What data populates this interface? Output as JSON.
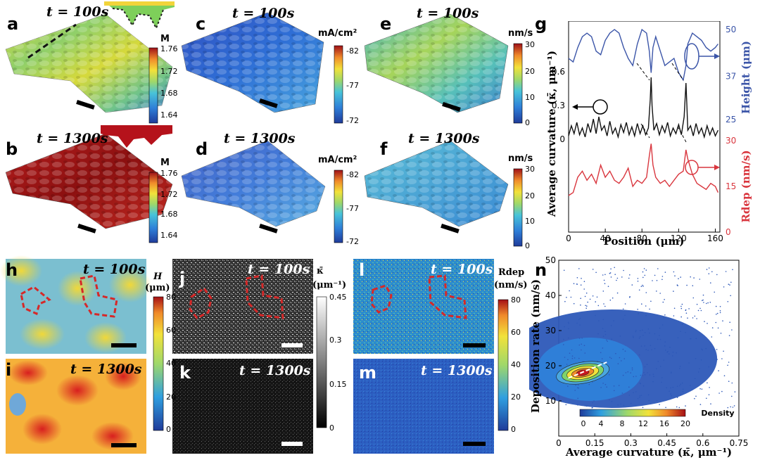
{
  "panels": {
    "a": {
      "label": "a",
      "time": "t = 100s"
    },
    "b": {
      "label": "b",
      "time": "t = 1300s"
    },
    "c": {
      "label": "c",
      "time": "t = 100s"
    },
    "d": {
      "label": "d",
      "time": "t = 1300s"
    },
    "e": {
      "label": "e",
      "time": "t = 100s"
    },
    "f": {
      "label": "f",
      "time": "t = 1300s"
    },
    "g": {
      "label": "g"
    },
    "h": {
      "label": "h",
      "time": "t = 100s"
    },
    "i": {
      "label": "i",
      "time": "t = 1300s"
    },
    "j": {
      "label": "j",
      "time": "t = 100s"
    },
    "k": {
      "label": "k",
      "time": "t = 1300s"
    },
    "l": {
      "label": "l",
      "time": "t = 100s"
    },
    "m": {
      "label": "m",
      "time": "t = 1300s"
    },
    "n": {
      "label": "n"
    }
  },
  "colorbars": {
    "M": {
      "unit": "M",
      "ticks": [
        "1.76",
        "1.72",
        "1.68",
        "1.64"
      ]
    },
    "current": {
      "unit": "mA/cm²",
      "ticks": [
        "-82",
        "-77",
        "-72"
      ]
    },
    "rate": {
      "unit": "nm/s",
      "ticks": [
        "30",
        "20",
        "10",
        "0"
      ]
    },
    "H": {
      "unit_a": "H",
      "unit_b": "(μm)",
      "ticks": [
        "80",
        "60",
        "40",
        "20",
        "0"
      ]
    },
    "kappa": {
      "unit_a": "κ̄",
      "unit_b": "(μm⁻¹)",
      "ticks": [
        "0.45",
        "0.3",
        "0.15",
        "0"
      ]
    },
    "Rdep": {
      "unit_a": "Rdep",
      "unit_b": "(nm/s)",
      "ticks": [
        "80",
        "60",
        "40",
        "20",
        "0"
      ]
    }
  },
  "g_axes": {
    "xlabel": "Position (μm)",
    "xticks": [
      "0",
      "40",
      "80",
      "120",
      "160"
    ],
    "ylabel_left": "Average curvature (κ̄, μm⁻¹)",
    "yticks_left": [
      "0.6",
      "0.3",
      "0"
    ],
    "ylabel_right_top": "Height (μm)",
    "yticks_right_top": [
      "50",
      "37",
      "25"
    ],
    "ylabel_right_bottom": "Rdep (nm/s)",
    "yticks_right_bottom": [
      "30",
      "15",
      "0"
    ]
  },
  "n_axes": {
    "xlabel": "Average curvature (κ̄, μm⁻¹)",
    "xticks": [
      "0",
      "0.15",
      "0.3",
      "0.45",
      "0.6",
      "0.75"
    ],
    "ylabel": "Deposition rate (nm/s)",
    "yticks": [
      "50",
      "40",
      "30",
      "20",
      "10"
    ],
    "density_label": "Density",
    "density_ticks": [
      "0",
      "4",
      "8",
      "12",
      "16",
      "20"
    ]
  },
  "colors": {
    "height_line": "#3b55a8",
    "curvature_line": "#111111",
    "rdep_line": "#d9363e",
    "outline": "#d62828"
  },
  "chart_data": [
    {
      "type": "line",
      "panel": "g",
      "x_range": [
        0,
        165
      ],
      "series": [
        {
          "x": [
            0,
            5,
            10,
            15,
            20,
            25,
            30,
            35,
            40,
            45,
            50,
            55,
            60,
            65,
            70,
            75,
            80,
            85,
            88,
            90,
            92,
            95,
            100,
            105,
            110,
            115,
            120,
            125,
            128,
            130,
            135,
            140,
            145,
            150,
            155,
            160,
            163
          ],
          "values": [
            42,
            41,
            45,
            48,
            49,
            48,
            44,
            43,
            47,
            49,
            50,
            49,
            45,
            42,
            40,
            46,
            50,
            49,
            44,
            38,
            45,
            48,
            44,
            40,
            41,
            42,
            38,
            36,
            40,
            46,
            49,
            48,
            47,
            45,
            44,
            45,
            46
          ],
          "axis": "Height"
        },
        {
          "x": [
            0,
            3,
            6,
            9,
            12,
            15,
            18,
            21,
            24,
            27,
            30,
            33,
            36,
            39,
            42,
            45,
            48,
            51,
            54,
            57,
            60,
            63,
            66,
            69,
            72,
            75,
            78,
            81,
            84,
            87,
            89,
            90,
            91,
            93,
            96,
            99,
            102,
            105,
            108,
            111,
            114,
            117,
            120,
            123,
            126,
            128,
            129,
            130,
            133,
            136,
            139,
            142,
            145,
            148,
            151,
            154,
            157,
            160,
            163
          ],
          "values": [
            0.03,
            0.12,
            0.05,
            0.15,
            0.04,
            0.1,
            0.02,
            0.14,
            0.06,
            0.18,
            0.05,
            0.2,
            0.08,
            0.12,
            0.03,
            0.16,
            0.05,
            0.1,
            0.02,
            0.13,
            0.06,
            0.15,
            0.04,
            0.11,
            0.03,
            0.14,
            0.05,
            0.12,
            0.04,
            0.1,
            0.35,
            0.55,
            0.3,
            0.08,
            0.14,
            0.04,
            0.12,
            0.06,
            0.15,
            0.03,
            0.1,
            0.05,
            0.13,
            0.04,
            0.2,
            0.5,
            0.3,
            0.08,
            0.12,
            0.03,
            0.14,
            0.05,
            0.1,
            0.02,
            0.12,
            0.04,
            0.1,
            0.03,
            0.08
          ],
          "axis": "Average curvature"
        },
        {
          "x": [
            0,
            5,
            10,
            15,
            20,
            25,
            30,
            35,
            40,
            45,
            50,
            55,
            60,
            65,
            70,
            75,
            80,
            85,
            88,
            90,
            92,
            95,
            100,
            105,
            110,
            115,
            120,
            125,
            128,
            130,
            135,
            140,
            145,
            150,
            155,
            160,
            163
          ],
          "values": [
            12,
            13,
            18,
            20,
            17,
            19,
            16,
            22,
            18,
            20,
            17,
            16,
            18,
            21,
            15,
            17,
            16,
            18,
            25,
            29,
            22,
            18,
            16,
            17,
            15,
            17,
            19,
            20,
            27,
            24,
            19,
            16,
            15,
            14,
            16,
            15,
            13
          ],
          "axis": "Rdep"
        }
      ]
    },
    {
      "type": "scatter",
      "panel": "n",
      "xlim": [
        0,
        0.75
      ],
      "ylim": [
        0,
        50
      ],
      "density_range": [
        0,
        20
      ],
      "peak": {
        "x": 0.1,
        "y": 18
      },
      "trend": {
        "x": [
          0.04,
          0.2
        ],
        "y": [
          16.5,
          21
        ]
      }
    }
  ]
}
